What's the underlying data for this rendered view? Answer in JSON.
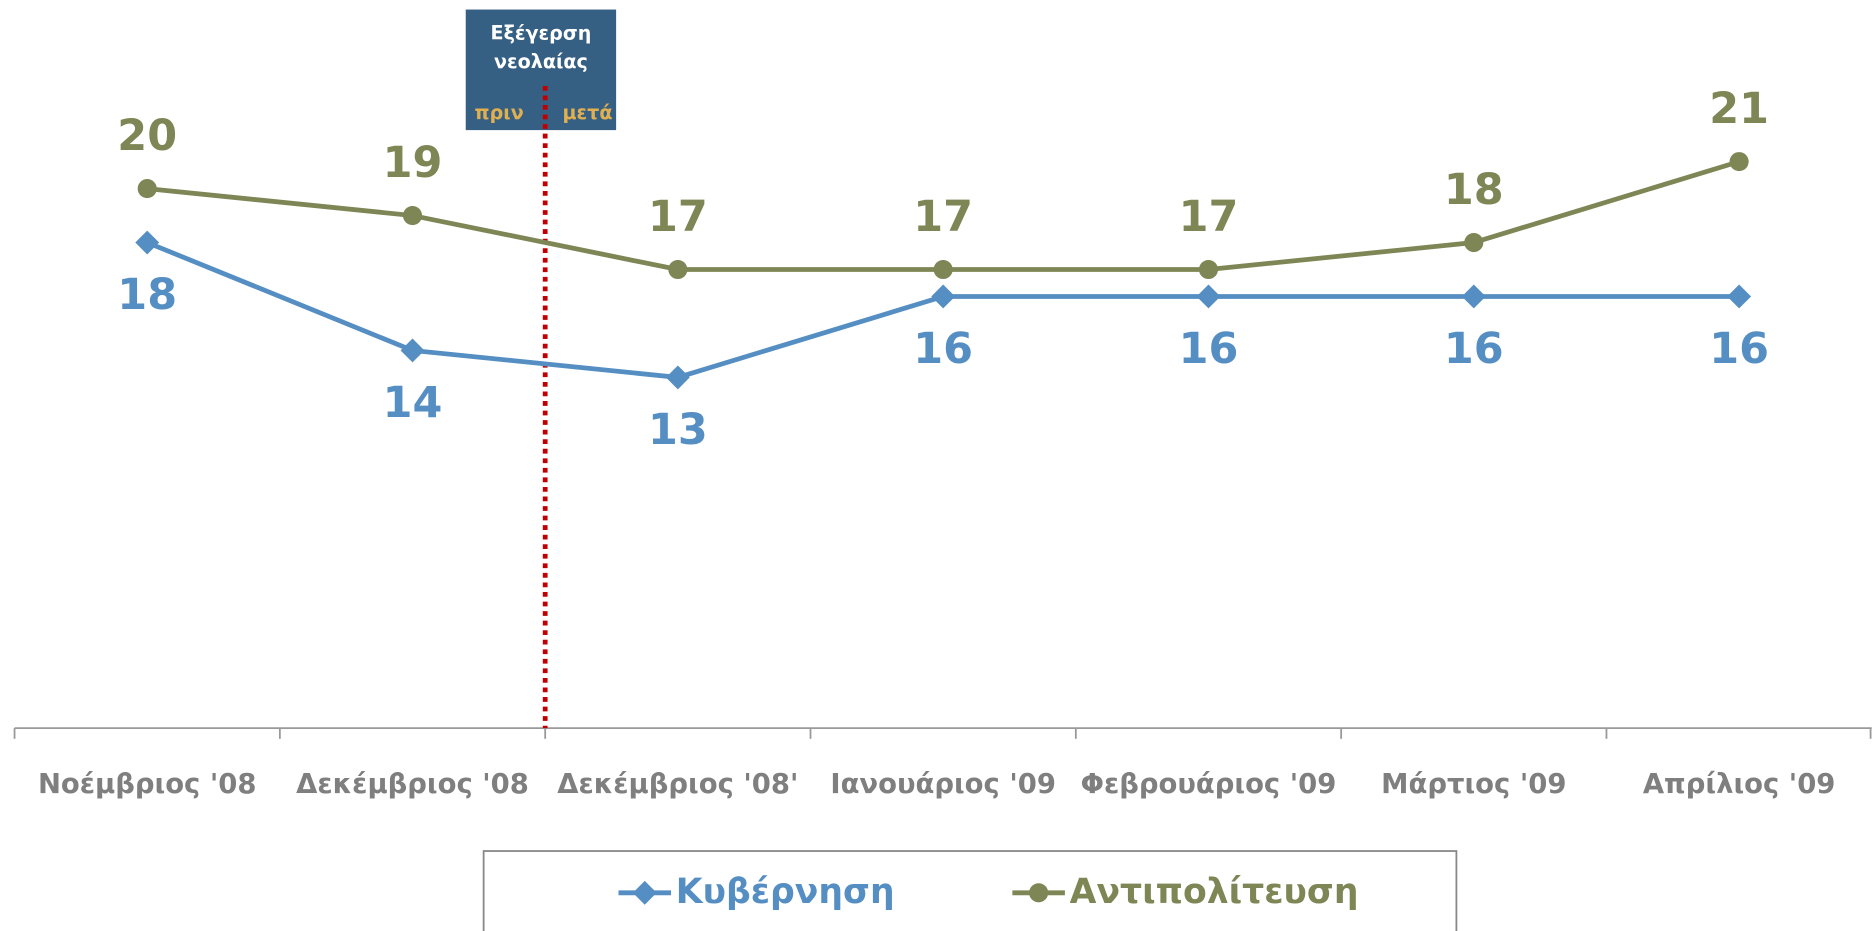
{
  "chart_data": {
    "type": "line",
    "categories": [
      "Νοέμβριος '08",
      "Δεκέμβριος '08",
      "Δεκέμβριος '08'",
      "Ιανουάριος '09",
      "Φεβρουάριος '09",
      "Μάρτιος '09",
      "Απρίλιος '09"
    ],
    "series": [
      {
        "name": "Κυβέρνηση",
        "color": "#558ec3",
        "marker": "diamond",
        "values": [
          18,
          14,
          13,
          16,
          16,
          16,
          16
        ]
      },
      {
        "name": "Αντιπολίτευση",
        "color": "#7e8655",
        "marker": "circle",
        "values": [
          20,
          19,
          17,
          17,
          17,
          18,
          21
        ]
      }
    ],
    "ylim": [
      0,
      25
    ],
    "annotations": {
      "event": "Εξέγερση νεολαίας",
      "before": "πριν",
      "after": "μετά"
    },
    "legend": "bottom"
  }
}
